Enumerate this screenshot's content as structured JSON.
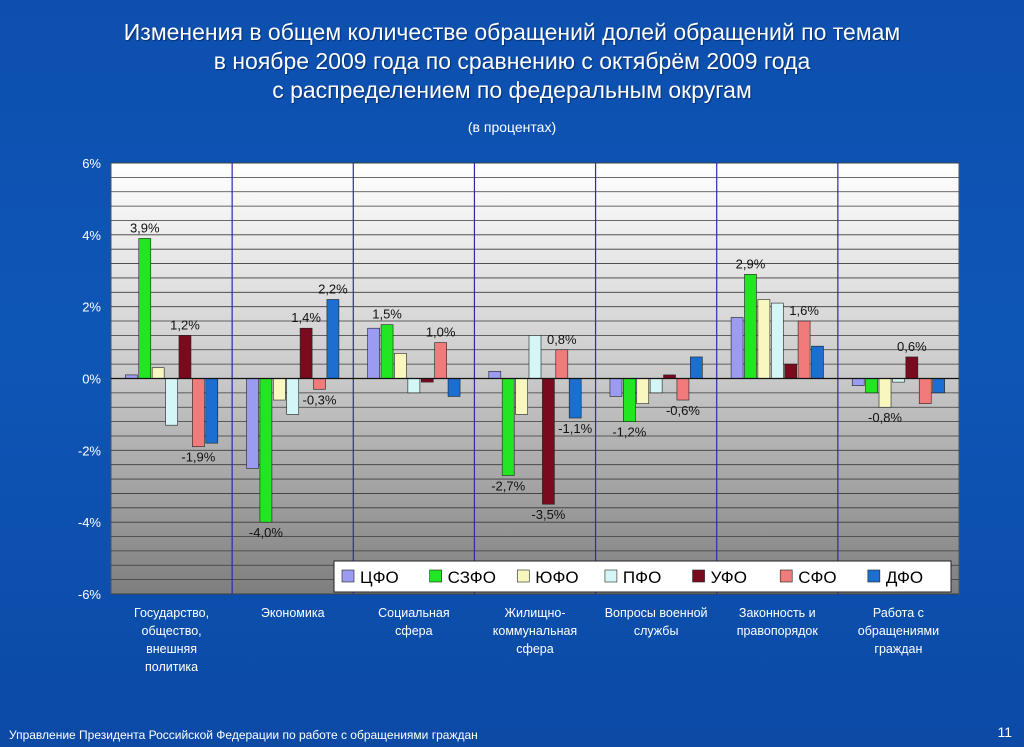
{
  "slide": {
    "title_lines": [
      "Изменения в общем количестве обращений долей обращений по темам",
      "в ноябре 2009 года по сравнению с октябрём 2009 года",
      "с распределением по федеральным округам"
    ],
    "subtitle": "(в процентах)",
    "footer": "Управление Президента Российской Федерации по работе с обращениями граждан",
    "page_number": "11"
  },
  "chart_data": {
    "type": "bar",
    "ylim": [
      -6,
      6
    ],
    "yticks": [
      6,
      4,
      2,
      0,
      -2,
      -4,
      -6
    ],
    "ytick_labels": [
      "6%",
      "4%",
      "2%",
      "0%",
      "-2%",
      "-4%",
      "-6%"
    ],
    "categories": [
      [
        "Государство,",
        "общество,",
        "внешняя",
        "политика"
      ],
      [
        "Экономика"
      ],
      [
        "Социальная",
        "сфера"
      ],
      [
        "Жилищно-",
        "коммунальная",
        "сфера"
      ],
      [
        "Вопросы военной",
        "службы"
      ],
      [
        "Законность и",
        "правопорядок"
      ],
      [
        "Работа с",
        "обращениями",
        "граждан"
      ]
    ],
    "legend_position": "bottom-right",
    "series": [
      {
        "name": "ЦФО",
        "color": "#9b9bf2",
        "values": [
          0.1,
          -2.5,
          1.4,
          0.2,
          -0.5,
          1.7,
          -0.2
        ]
      },
      {
        "name": "СЗФО",
        "color": "#22e622",
        "values": [
          3.9,
          -4.0,
          1.5,
          -2.7,
          -1.2,
          2.9,
          -0.4
        ]
      },
      {
        "name": "ЮФО",
        "color": "#f7f7bf",
        "values": [
          0.3,
          -0.6,
          0.7,
          -1.0,
          -0.7,
          2.2,
          -0.8
        ]
      },
      {
        "name": "ПФО",
        "color": "#d4f6f6",
        "values": [
          -1.3,
          -1.0,
          -0.4,
          1.2,
          -0.4,
          2.1,
          -0.1
        ]
      },
      {
        "name": "УФО",
        "color": "#7a0a1e",
        "values": [
          1.2,
          1.4,
          -0.1,
          -3.5,
          0.1,
          0.4,
          0.6
        ]
      },
      {
        "name": "СФО",
        "color": "#f07b7b",
        "values": [
          -1.9,
          -0.3,
          1.0,
          0.8,
          -0.6,
          1.6,
          -0.7
        ]
      },
      {
        "name": "ДФО",
        "color": "#1c6fd0",
        "values": [
          -1.8,
          2.2,
          -0.5,
          -1.1,
          0.6,
          0.9,
          -0.4
        ]
      }
    ],
    "data_labels": [
      {
        "cat": 0,
        "series": 1,
        "text": "3,9%"
      },
      {
        "cat": 0,
        "series": 4,
        "text": "1,2%"
      },
      {
        "cat": 0,
        "series": 5,
        "text": "-1,9%"
      },
      {
        "cat": 1,
        "series": 1,
        "text": "-4,0%"
      },
      {
        "cat": 1,
        "series": 4,
        "text": "1,4%"
      },
      {
        "cat": 1,
        "series": 5,
        "text": "-0,3%"
      },
      {
        "cat": 1,
        "series": 6,
        "text": "2,2%"
      },
      {
        "cat": 2,
        "series": 1,
        "text": "1,5%"
      },
      {
        "cat": 2,
        "series": 5,
        "text": "1,0%"
      },
      {
        "cat": 3,
        "series": 1,
        "text": "-2,7%"
      },
      {
        "cat": 3,
        "series": 4,
        "text": "-3,5%"
      },
      {
        "cat": 3,
        "series": 5,
        "text": "0,8%"
      },
      {
        "cat": 3,
        "series": 6,
        "text": "-1,1%"
      },
      {
        "cat": 4,
        "series": 1,
        "text": "-1,2%"
      },
      {
        "cat": 4,
        "series": 5,
        "text": "-0,6%"
      },
      {
        "cat": 5,
        "series": 1,
        "text": "2,9%"
      },
      {
        "cat": 5,
        "series": 5,
        "text": "1,6%"
      },
      {
        "cat": 6,
        "series": 2,
        "text": "-0,8%"
      },
      {
        "cat": 6,
        "series": 4,
        "text": "0,6%"
      }
    ]
  }
}
